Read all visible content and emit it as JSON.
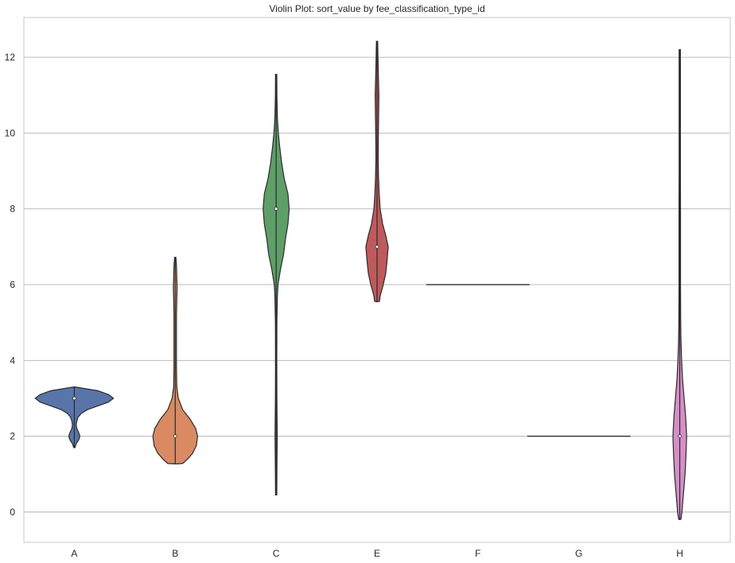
{
  "chart_data": {
    "type": "violin",
    "title": "Violin Plot: sort_value by fee_classification_type_id",
    "xlabel": "",
    "ylabel": "",
    "categories": [
      "A",
      "B",
      "C",
      "E",
      "F",
      "G",
      "H"
    ],
    "ylim": [
      -0.8,
      13.05
    ],
    "yticks": [
      0,
      2,
      4,
      6,
      8,
      10,
      12
    ],
    "grid": "y",
    "violins": [
      {
        "category": "A",
        "color": "#5874a9",
        "median": 3.0,
        "min": 1.7,
        "max": 3.3,
        "profile": [
          [
            1.7,
            0.0
          ],
          [
            1.8,
            0.03
          ],
          [
            1.9,
            0.07
          ],
          [
            2.0,
            0.09
          ],
          [
            2.1,
            0.07
          ],
          [
            2.2,
            0.04
          ],
          [
            2.3,
            0.03
          ],
          [
            2.4,
            0.04
          ],
          [
            2.5,
            0.06
          ],
          [
            2.6,
            0.11
          ],
          [
            2.7,
            0.21
          ],
          [
            2.8,
            0.38
          ],
          [
            2.9,
            0.55
          ],
          [
            3.0,
            0.63
          ],
          [
            3.1,
            0.55
          ],
          [
            3.2,
            0.38
          ],
          [
            3.3,
            0.0
          ]
        ]
      },
      {
        "category": "B",
        "color": "#d98a62",
        "median": 2.0,
        "min": 1.27,
        "max": 6.72,
        "profile": [
          [
            1.27,
            0.0
          ],
          [
            1.28,
            0.12
          ],
          [
            1.4,
            0.2
          ],
          [
            1.55,
            0.28
          ],
          [
            1.75,
            0.34
          ],
          [
            2.0,
            0.36
          ],
          [
            2.2,
            0.33
          ],
          [
            2.45,
            0.24
          ],
          [
            2.7,
            0.12
          ],
          [
            3.0,
            0.05
          ],
          [
            3.3,
            0.025
          ],
          [
            3.8,
            0.02
          ],
          [
            4.5,
            0.02
          ],
          [
            5.2,
            0.02
          ],
          [
            5.6,
            0.025
          ],
          [
            5.9,
            0.03
          ],
          [
            6.2,
            0.025
          ],
          [
            6.5,
            0.02
          ],
          [
            6.72,
            0.0
          ]
        ]
      },
      {
        "category": "C",
        "color": "#5e9e68",
        "median": 8.0,
        "min": 0.45,
        "max": 11.55,
        "profile": [
          [
            0.45,
            0.0
          ],
          [
            0.5,
            0.01
          ],
          [
            1.0,
            0.012
          ],
          [
            1.5,
            0.015
          ],
          [
            2.0,
            0.018
          ],
          [
            2.5,
            0.015
          ],
          [
            3.0,
            0.012
          ],
          [
            4.0,
            0.01
          ],
          [
            5.0,
            0.012
          ],
          [
            5.7,
            0.02
          ],
          [
            6.0,
            0.03
          ],
          [
            6.4,
            0.07
          ],
          [
            6.8,
            0.12
          ],
          [
            7.2,
            0.15
          ],
          [
            7.6,
            0.19
          ],
          [
            8.0,
            0.21
          ],
          [
            8.4,
            0.19
          ],
          [
            8.8,
            0.13
          ],
          [
            9.2,
            0.09
          ],
          [
            9.6,
            0.06
          ],
          [
            10.0,
            0.035
          ],
          [
            10.4,
            0.02
          ],
          [
            11.0,
            0.012
          ],
          [
            11.55,
            0.0
          ]
        ]
      },
      {
        "category": "E",
        "color": "#bf5a5c",
        "median": 7.0,
        "min": 5.55,
        "max": 12.42,
        "profile": [
          [
            5.55,
            0.0
          ],
          [
            5.56,
            0.04
          ],
          [
            5.7,
            0.05
          ],
          [
            6.0,
            0.1
          ],
          [
            6.3,
            0.14
          ],
          [
            6.6,
            0.16
          ],
          [
            7.0,
            0.18
          ],
          [
            7.3,
            0.14
          ],
          [
            7.6,
            0.09
          ],
          [
            8.0,
            0.05
          ],
          [
            8.4,
            0.035
          ],
          [
            8.8,
            0.025
          ],
          [
            9.3,
            0.018
          ],
          [
            9.8,
            0.02
          ],
          [
            10.4,
            0.025
          ],
          [
            11.0,
            0.03
          ],
          [
            11.6,
            0.02
          ],
          [
            12.0,
            0.015
          ],
          [
            12.42,
            0.0
          ]
        ]
      },
      {
        "category": "F",
        "color": "#8a7bbf",
        "median": 6.0,
        "min": 6.0,
        "max": 6.0,
        "flat": true
      },
      {
        "category": "G",
        "color": "#9b7c6a",
        "median": 2.0,
        "min": 2.0,
        "max": 2.0,
        "flat": true
      },
      {
        "category": "H",
        "color": "#d68fc7",
        "median": 2.0,
        "min": -0.2,
        "max": 12.2,
        "profile": [
          [
            -0.2,
            0.0
          ],
          [
            -0.18,
            0.02
          ],
          [
            0.0,
            0.035
          ],
          [
            0.5,
            0.06
          ],
          [
            1.0,
            0.085
          ],
          [
            1.5,
            0.1
          ],
          [
            2.0,
            0.11
          ],
          [
            2.5,
            0.095
          ],
          [
            3.0,
            0.07
          ],
          [
            3.5,
            0.045
          ],
          [
            4.0,
            0.03
          ],
          [
            4.5,
            0.02
          ],
          [
            5.0,
            0.015
          ],
          [
            6.0,
            0.012
          ],
          [
            7.0,
            0.012
          ],
          [
            8.0,
            0.012
          ],
          [
            9.0,
            0.01
          ],
          [
            10.0,
            0.01
          ],
          [
            11.0,
            0.01
          ],
          [
            12.2,
            0.0
          ]
        ]
      }
    ]
  }
}
